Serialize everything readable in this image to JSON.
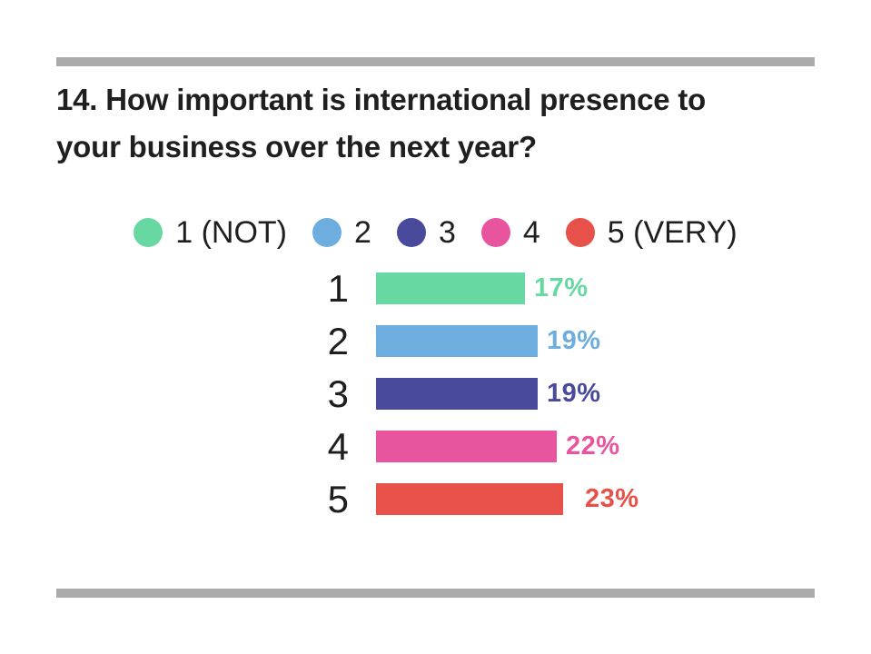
{
  "page": {
    "background": "#ffffff",
    "divider_color": "#ababab",
    "text_color": "#1f1f1f"
  },
  "title": {
    "text": "14. How important is international presence to your business over the next year?",
    "lines": [
      "14. How important is international presence to",
      "your business over the next year?"
    ]
  },
  "legend": {
    "items": [
      {
        "label": "1 (NOT)",
        "color": "#68d8a3"
      },
      {
        "label": "2",
        "color": "#6eaedf"
      },
      {
        "label": "3",
        "color": "#4a4a9c"
      },
      {
        "label": "4",
        "color": "#e8559e"
      },
      {
        "label": "5 (VERY)",
        "color": "#e8514a"
      }
    ]
  },
  "chart_data": {
    "type": "bar",
    "orientation": "horizontal",
    "title": "14. How important is international presence to your business over the next year?",
    "categories": [
      "1",
      "2",
      "3",
      "4",
      "5"
    ],
    "values": [
      17,
      19,
      19,
      22,
      23
    ],
    "unit": "%",
    "value_labels": [
      "17%",
      "19%",
      "19%",
      "22%",
      "23%"
    ],
    "colors": [
      "#68d8a3",
      "#6eaedf",
      "#4a4a9c",
      "#e8559e",
      "#e8514a"
    ],
    "legend_entries": [
      "1 (NOT)",
      "2",
      "3",
      "4",
      "5 (VERY)"
    ],
    "legend_position": "top",
    "grid": false,
    "axes_visible": false,
    "xlabel": "",
    "ylabel": ""
  }
}
